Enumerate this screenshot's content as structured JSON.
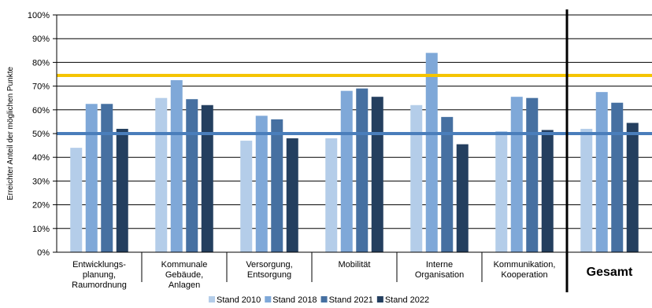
{
  "chart_data": {
    "type": "bar",
    "title": "",
    "xlabel": "",
    "ylabel": "Erreichter Anteil der möglichen Punkte",
    "ylim": [
      0,
      100
    ],
    "y_ticks": [
      "0%",
      "10%",
      "20%",
      "30%",
      "40%",
      "50%",
      "60%",
      "70%",
      "80%",
      "90%",
      "100%"
    ],
    "grid": true,
    "legend_position": "bottom",
    "categories": [
      [
        "Entwicklungs-",
        "planung,",
        "Raumordnung"
      ],
      [
        "Kommunale",
        "Gebäude,",
        "Anlagen"
      ],
      [
        "Versorgung,",
        "Entsorgung"
      ],
      [
        "Mobilität"
      ],
      [
        "Interne",
        "Organisation"
      ],
      [
        "Kommunikation,",
        "Kooperation"
      ],
      [
        "Gesamt"
      ]
    ],
    "series": [
      {
        "name": "Stand 2010",
        "color": "#b4cde9",
        "values": [
          44,
          65,
          47,
          48,
          62,
          51,
          52
        ]
      },
      {
        "name": "Stand 2018",
        "color": "#7fa8d8",
        "values": [
          62.5,
          72.5,
          57.5,
          68,
          84,
          65.5,
          67.5
        ]
      },
      {
        "name": "Stand 2021",
        "color": "#4670a1",
        "values": [
          62.5,
          64.5,
          56,
          69,
          57,
          65,
          63
        ]
      },
      {
        "name": "Stand 2022",
        "color": "#243f5f",
        "values": [
          52,
          62,
          48,
          65.5,
          45.5,
          51.5,
          54.5
        ]
      }
    ],
    "reference_lines": [
      {
        "value": 74.5,
        "color": "#f5c400"
      },
      {
        "value": 50,
        "color": "#4a7ebb"
      }
    ],
    "separator_before_category": 6
  }
}
